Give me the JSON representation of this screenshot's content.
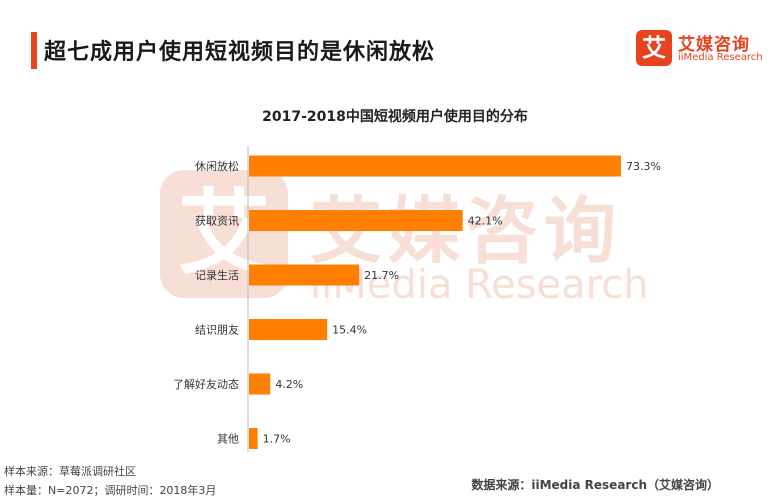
{
  "header": {
    "title": "超七成用户使用短视频目的是休闲放松"
  },
  "logo": {
    "mark": "艾",
    "name_cn": "艾媒咨询",
    "name_en": "iiMedia Research"
  },
  "watermark": {
    "mark": "艾",
    "name_cn": "艾媒咨询",
    "name_en": "iiMedia Research"
  },
  "colors": {
    "accent": "#e8431f",
    "bar": "#ff7f00"
  },
  "chart_data": {
    "type": "bar",
    "orientation": "horizontal",
    "title": "2017-2018中国短视频用户使用目的分布",
    "categories": [
      "休闲放松",
      "获取资讯",
      "记录生活",
      "结识朋友",
      "了解好友动态",
      "其他"
    ],
    "values": [
      73.3,
      42.1,
      21.7,
      15.4,
      4.2,
      1.7
    ],
    "value_labels": [
      "73.3%",
      "42.1%",
      "21.7%",
      "15.4%",
      "4.2%",
      "1.7%"
    ],
    "unit": "%",
    "xlim": [
      0,
      73.3
    ],
    "grid": false,
    "legend": "none"
  },
  "footer": {
    "sample_source": "样本来源：草莓派调研社区",
    "sample_size": "样本量：N=2072；调研时间：2018年3月",
    "data_source": "数据来源：iiMedia Research（艾媒咨询）"
  }
}
